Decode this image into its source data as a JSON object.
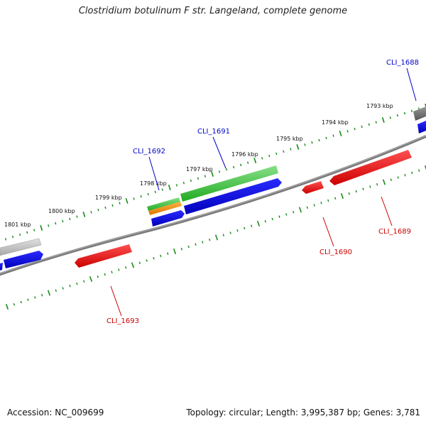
{
  "title": "Clostridium botulinum F str. Langeland, complete genome",
  "footer": {
    "accession": "Accession: NC_009699",
    "summary": "Topology: circular; Length: 3,995,387 bp; Genes: 3,781"
  },
  "ticks": [
    {
      "label": "1801 kbp"
    },
    {
      "label": "1800 kbp"
    },
    {
      "label": "1799 kbp"
    },
    {
      "label": "1798 kbp"
    },
    {
      "label": "1797 kbp"
    },
    {
      "label": "1796 kbp"
    },
    {
      "label": "1795 kbp"
    },
    {
      "label": "1794 kbp"
    },
    {
      "label": "1793 kbp"
    }
  ],
  "genes": [
    {
      "label": "CLI_1688",
      "strand": "forward",
      "color": "#0000cc"
    },
    {
      "label": "CLI_1689",
      "strand": "reverse",
      "color": "#cc0000"
    },
    {
      "label": "CLI_1690",
      "strand": "reverse",
      "color": "#cc0000"
    },
    {
      "label": "CLI_1691",
      "strand": "forward",
      "color": "#0000cc"
    },
    {
      "label": "CLI_1692",
      "strand": "forward",
      "color": "#0000cc"
    },
    {
      "label": "CLI_1693",
      "strand": "reverse",
      "color": "#cc0000"
    }
  ],
  "colors": {
    "backbone": "#808080",
    "tick": "#1a8a1a",
    "forward_cds": "#0000ee",
    "reverse_cds": "#ee0000",
    "green_feature": "#33bb33",
    "orange_feature": "#ee8800",
    "gray_feature": "#bbbbbb",
    "dark_feature": "#555555"
  }
}
